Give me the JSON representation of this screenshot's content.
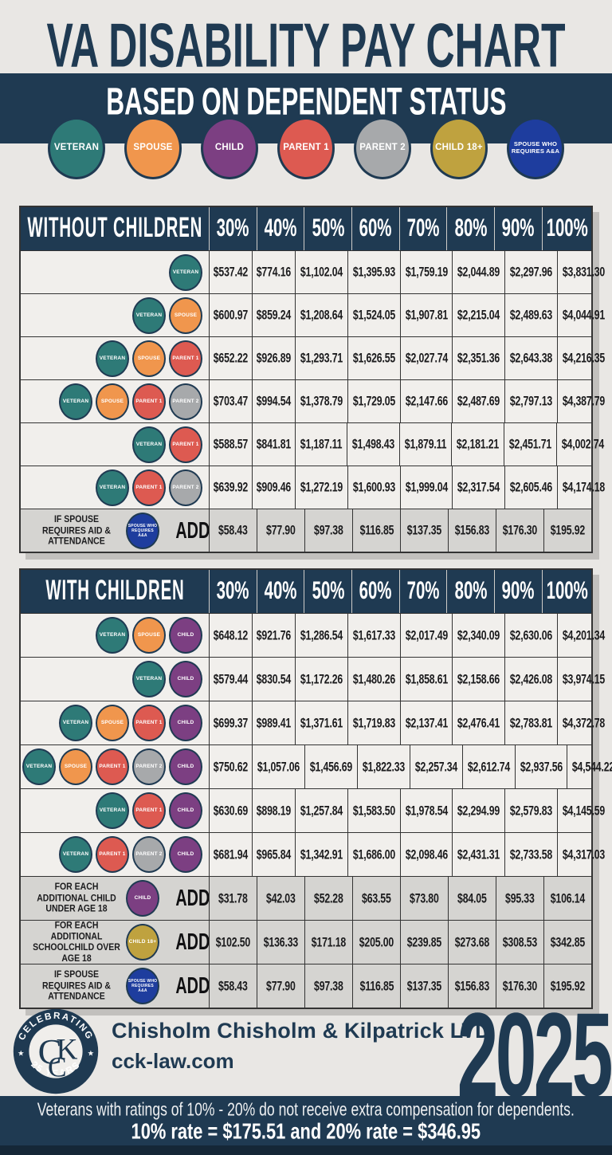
{
  "header": {
    "title": "VA DISABILITY PAY CHART",
    "subtitle": "BASED ON DEPENDENT STATUS",
    "legend": [
      {
        "label": "VETERAN",
        "color": "#2e7a77"
      },
      {
        "label": "SPOUSE",
        "color": "#f0964d"
      },
      {
        "label": "CHILD",
        "color": "#7c3f82"
      },
      {
        "label": "PARENT 1",
        "color": "#dd5a51"
      },
      {
        "label": "PARENT 2",
        "color": "#a7a9ab"
      },
      {
        "label": "CHILD 18+",
        "color": "#bfa23f"
      },
      {
        "label": "SPOUSE WHO REQUIRES A&A",
        "color": "#1e3d9e"
      }
    ]
  },
  "badge_lines": {
    "SPOUSE WHO REQUIRES A&A": [
      "SPOUSE WHO",
      "REQUIRES A&A"
    ]
  },
  "colors": {
    "navy": "#1f3a52",
    "background": "#e9e7e4",
    "row": "#f1efec",
    "shaded_row": "#d5d4d1",
    "bottom_strip": "#152737"
  },
  "chart_data": [
    {
      "type": "table",
      "title": "WITHOUT CHILDREN",
      "columns": [
        "30%",
        "40%",
        "50%",
        "60%",
        "70%",
        "80%",
        "90%",
        "100%"
      ],
      "rows": [
        {
          "dependents": [
            "VETERAN"
          ],
          "values": [
            "$537.42",
            "$774.16",
            "$1,102.04",
            "$1,395.93",
            "$1,759.19",
            "$2,044.89",
            "$2,297.96",
            "$3,831.30"
          ]
        },
        {
          "dependents": [
            "VETERAN",
            "SPOUSE"
          ],
          "values": [
            "$600.97",
            "$859.24",
            "$1,208.64",
            "$1,524.05",
            "$1,907.81",
            "$2,215.04",
            "$2,489.63",
            "$4,044.91"
          ]
        },
        {
          "dependents": [
            "VETERAN",
            "SPOUSE",
            "PARENT 1"
          ],
          "values": [
            "$652.22",
            "$926.89",
            "$1,293.71",
            "$1,626.55",
            "$2,027.74",
            "$2,351.36",
            "$2,643.38",
            "$4,216.35"
          ]
        },
        {
          "dependents": [
            "VETERAN",
            "SPOUSE",
            "PARENT 1",
            "PARENT 2"
          ],
          "values": [
            "$703.47",
            "$994.54",
            "$1,378.79",
            "$1,729.05",
            "$2,147.66",
            "$2,487.69",
            "$2,797.13",
            "$4,387.79"
          ]
        },
        {
          "dependents": [
            "VETERAN",
            "PARENT 1"
          ],
          "values": [
            "$588.57",
            "$841.81",
            "$1,187.11",
            "$1,498.43",
            "$1,879.11",
            "$2,181.21",
            "$2,451.71",
            "$4,002.74"
          ]
        },
        {
          "dependents": [
            "VETERAN",
            "PARENT 1",
            "PARENT 2"
          ],
          "values": [
            "$639.92",
            "$909.46",
            "$1,272.19",
            "$1,600.93",
            "$1,999.04",
            "$2,317.54",
            "$2,605.46",
            "$4,174.18"
          ]
        },
        {
          "label": "IF SPOUSE REQUIRES AID & ATTENDANCE",
          "dependents": [
            "SPOUSE WHO REQUIRES A&A"
          ],
          "add": "ADD",
          "values": [
            "$58.43",
            "$77.90",
            "$97.38",
            "$116.85",
            "$137.35",
            "$156.83",
            "$176.30",
            "$195.92"
          ]
        }
      ]
    },
    {
      "type": "table",
      "title": "WITH CHILDREN",
      "columns": [
        "30%",
        "40%",
        "50%",
        "60%",
        "70%",
        "80%",
        "90%",
        "100%"
      ],
      "rows": [
        {
          "dependents": [
            "VETERAN",
            "SPOUSE",
            "CHILD"
          ],
          "values": [
            "$648.12",
            "$921.76",
            "$1,286.54",
            "$1,617.33",
            "$2,017.49",
            "$2,340.09",
            "$2,630.06",
            "$4,201.34"
          ]
        },
        {
          "dependents": [
            "VETERAN",
            "CHILD"
          ],
          "values": [
            "$579.44",
            "$830.54",
            "$1,172.26",
            "$1,480.26",
            "$1,858.61",
            "$2,158.66",
            "$2,426.08",
            "$3,974.15"
          ]
        },
        {
          "dependents": [
            "VETERAN",
            "SPOUSE",
            "PARENT 1",
            "CHILD"
          ],
          "values": [
            "$699.37",
            "$989.41",
            "$1,371.61",
            "$1,719.83",
            "$2,137.41",
            "$2,476.41",
            "$2,783.81",
            "$4,372.78"
          ]
        },
        {
          "dependents": [
            "VETERAN",
            "SPOUSE",
            "PARENT 1",
            "PARENT 2",
            "CHILD"
          ],
          "values": [
            "$750.62",
            "$1,057.06",
            "$1,456.69",
            "$1,822.33",
            "$2,257.34",
            "$2,612.74",
            "$2,937.56",
            "$4,544.22"
          ]
        },
        {
          "dependents": [
            "VETERAN",
            "PARENT 1",
            "CHILD"
          ],
          "values": [
            "$630.69",
            "$898.19",
            "$1,257.84",
            "$1,583.50",
            "$1,978.54",
            "$2,294.99",
            "$2,579.83",
            "$4,145.59"
          ]
        },
        {
          "dependents": [
            "VETERAN",
            "PARENT 1",
            "PARENT 2",
            "CHILD"
          ],
          "values": [
            "$681.94",
            "$965.84",
            "$1,342.91",
            "$1,686.00",
            "$2,098.46",
            "$2,431.31",
            "$2,733.58",
            "$4,317.03"
          ]
        },
        {
          "label": "FOR EACH ADDITIONAL CHILD UNDER AGE 18",
          "dependents": [
            "CHILD"
          ],
          "add": "ADD",
          "values": [
            "$31.78",
            "$42.03",
            "$52.28",
            "$63.55",
            "$73.80",
            "$84.05",
            "$95.33",
            "$106.14"
          ]
        },
        {
          "label": "FOR EACH ADDITIONAL SCHOOLCHILD OVER AGE 18",
          "dependents": [
            "CHILD 18+"
          ],
          "add": "ADD",
          "values": [
            "$102.50",
            "$136.33",
            "$171.18",
            "$205.00",
            "$239.85",
            "$273.68",
            "$308.53",
            "$342.85"
          ]
        },
        {
          "label": "IF SPOUSE REQUIRES AID & ATTENDANCE",
          "dependents": [
            "SPOUSE WHO REQUIRES A&A"
          ],
          "add": "ADD",
          "values": [
            "$58.43",
            "$77.90",
            "$97.38",
            "$116.85",
            "$137.35",
            "$156.83",
            "$176.30",
            "$195.92"
          ]
        }
      ]
    }
  ],
  "footer": {
    "logo": {
      "top": "CELEBRATING",
      "bottom": "25 YEARS",
      "star": "★",
      "letters": [
        "C",
        "C",
        "K"
      ]
    },
    "company": "Chisholm Chisholm & Kilpatrick LTD",
    "website": "cck-law.com",
    "year": "2025"
  },
  "notice": {
    "line1": "Veterans with ratings of 10% - 20% do not receive extra compensation for dependents.",
    "line2": "10% rate = $175.51  and  20% rate = $346.95"
  }
}
